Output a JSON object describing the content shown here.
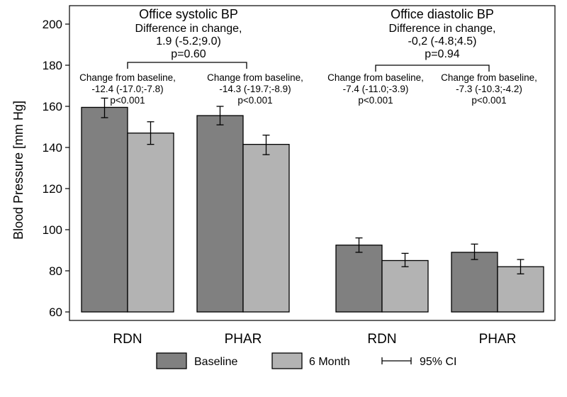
{
  "chart_data": {
    "type": "bar",
    "ylabel": "Blood Pressure [mm Hg]",
    "ylim": [
      60,
      205
    ],
    "yticks": [
      60,
      80,
      100,
      120,
      140,
      160,
      180,
      200
    ],
    "categories": [
      "RDN",
      "PHAR",
      "RDN",
      "PHAR"
    ],
    "series": [
      {
        "name": "Baseline",
        "color": "#808080",
        "values": [
          159.5,
          155.5,
          92.5,
          89.0
        ],
        "ci_low": [
          154.5,
          151.0,
          89.0,
          85.5
        ],
        "ci_high": [
          164.0,
          160.0,
          96.0,
          93.0
        ]
      },
      {
        "name": "6 Month",
        "color": "#b3b3b3",
        "values": [
          147.0,
          141.5,
          85.0,
          82.0
        ],
        "ci_low": [
          141.5,
          136.5,
          82.0,
          78.5
        ],
        "ci_high": [
          152.5,
          146.0,
          88.5,
          85.5
        ]
      }
    ],
    "groups": [
      {
        "title": "Office systolic BP",
        "lines": [
          "Difference in change,",
          "1.9 (-5.2;9.0)",
          "p=0.60"
        ]
      },
      {
        "title": "Office diastolic BP",
        "lines": [
          "Difference in change,",
          "-0,2 (-4.8;4.5)",
          "p=0.94"
        ]
      }
    ],
    "annotations": [
      [
        "Change from baseline,",
        "-12.4 (-17.0;-7.8)",
        "p<0.001"
      ],
      [
        "Change from baseline,",
        "-14.3 (-19.7;-8.9)",
        "p<0.001"
      ],
      [
        "Change from baseline,",
        "-7.4 (-11.0;-3.9)",
        "p<0.001"
      ],
      [
        "Change from baseline,",
        "-7.3 (-10.3;-4.2)",
        "p<0.001"
      ]
    ],
    "legend": {
      "position": "bottom",
      "items": [
        "Baseline",
        "6 Month",
        "95% CI"
      ]
    },
    "grid": false
  }
}
